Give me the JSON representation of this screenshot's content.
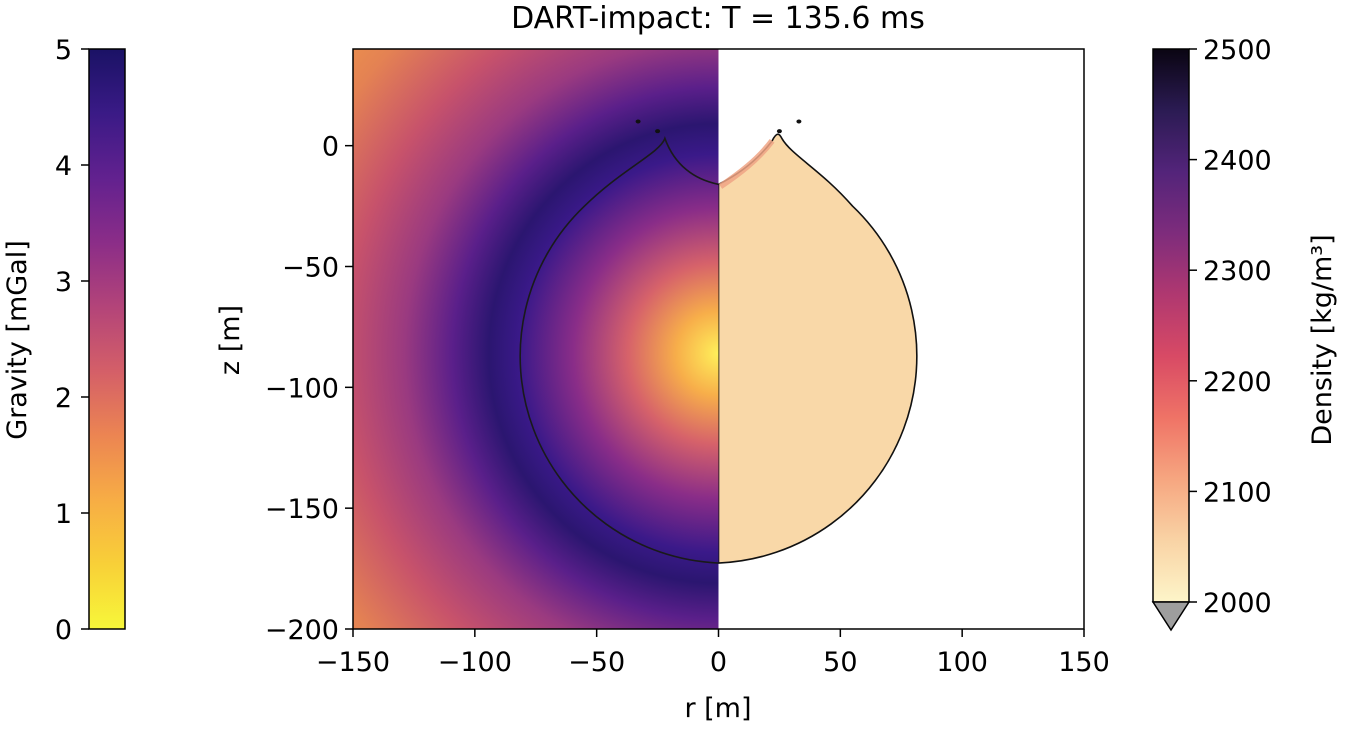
{
  "chart_data": {
    "type": "heatmap",
    "title": "DART-impact: T =  135.6 ms",
    "xlabel": "r [m]",
    "ylabel": "z [m]",
    "xlim": [
      -150,
      150
    ],
    "ylim": [
      -200,
      40
    ],
    "xticks": [
      -150,
      -100,
      -50,
      0,
      50,
      100,
      150
    ],
    "xtick_labels": [
      "−150",
      "−100",
      "−50",
      "0",
      "50",
      "100",
      "150"
    ],
    "yticks": [
      0,
      -50,
      -100,
      -150,
      -200
    ],
    "ytick_labels": [
      "0",
      "−50",
      "−100",
      "−150",
      "−200"
    ],
    "grid": false,
    "panels": [
      {
        "name": "gravity",
        "side": "left",
        "field_center": [
          0,
          -86
        ],
        "peak_radius": 80,
        "outline": {
          "center": [
            0,
            -87
          ],
          "radius": 85
        }
      },
      {
        "name": "density",
        "side": "right",
        "fill_value": 2040,
        "outline": {
          "center": [
            0,
            -87
          ],
          "radius": 85
        }
      }
    ],
    "colorbars": [
      {
        "name": "gravity",
        "side": "left",
        "label": "Gravity [mGal]",
        "range": [
          0,
          5
        ],
        "ticks": [
          0,
          1,
          2,
          3,
          4,
          5
        ],
        "tick_labels": [
          "0",
          "1",
          "2",
          "3",
          "4",
          "5"
        ],
        "colors": [
          "#f7f739",
          "#f8d038",
          "#f7ad45",
          "#ec8552",
          "#d45f68",
          "#b34479",
          "#8b2d88",
          "#62218f",
          "#3a1a86",
          "#1a1265"
        ]
      },
      {
        "name": "density",
        "side": "right",
        "label": "Density [kg/m³]",
        "range": [
          2000,
          2500
        ],
        "ticks": [
          2000,
          2100,
          2200,
          2300,
          2400,
          2500
        ],
        "tick_labels": [
          "2000",
          "2100",
          "2200",
          "2300",
          "2400",
          "2500"
        ],
        "extend": "min",
        "colors": [
          "#fdf5c9",
          "#f9d3a5",
          "#f6a680",
          "#ef7366",
          "#d84a65",
          "#b03870",
          "#7e2c7c",
          "#53247a",
          "#2b1b53",
          "#0a0512"
        ],
        "under_color": "#9e9e9e"
      }
    ]
  }
}
